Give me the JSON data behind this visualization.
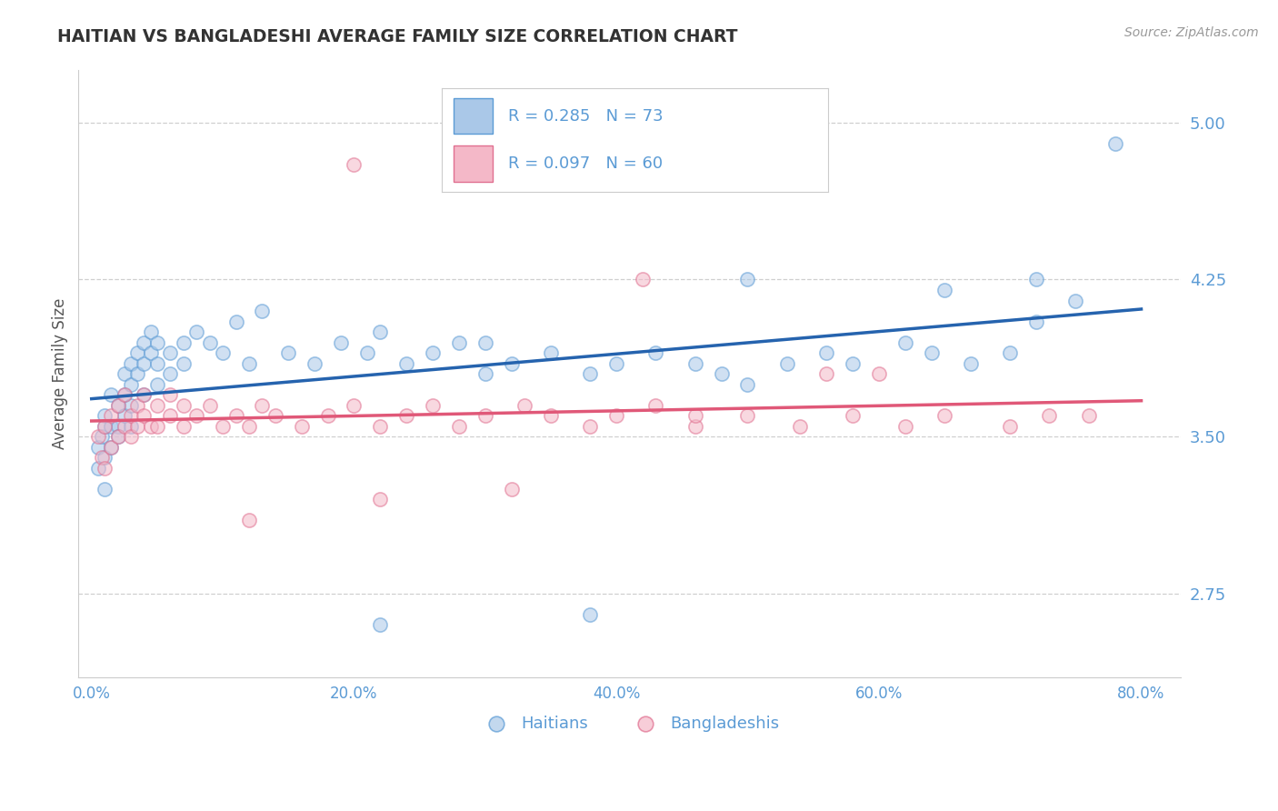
{
  "title": "HAITIAN VS BANGLADESHI AVERAGE FAMILY SIZE CORRELATION CHART",
  "source_text": "Source: ZipAtlas.com",
  "xlabel_ticks": [
    "0.0%",
    "20.0%",
    "40.0%",
    "60.0%",
    "80.0%"
  ],
  "xlabel_tick_vals": [
    0.0,
    0.2,
    0.4,
    0.6,
    0.8
  ],
  "ylabel": "Average Family Size",
  "yticks": [
    2.75,
    3.5,
    4.25,
    5.0
  ],
  "ylim": [
    2.35,
    5.25
  ],
  "xlim": [
    -0.01,
    0.83
  ],
  "title_color": "#444444",
  "axis_color": "#5b9bd5",
  "grid_color": "#bbbbbb",
  "blue_fill": "#aac8e8",
  "pink_fill": "#f4b8c8",
  "blue_edge": "#5b9bd5",
  "pink_edge": "#e07090",
  "blue_line_color": "#2563ae",
  "pink_line_color": "#e05878",
  "legend_text1": "R = 0.285   N = 73",
  "legend_text2": "R = 0.097   N = 60",
  "haitian_x": [
    0.005,
    0.005,
    0.008,
    0.01,
    0.01,
    0.01,
    0.01,
    0.015,
    0.015,
    0.015,
    0.02,
    0.02,
    0.02,
    0.025,
    0.025,
    0.025,
    0.03,
    0.03,
    0.03,
    0.03,
    0.035,
    0.035,
    0.04,
    0.04,
    0.04,
    0.045,
    0.045,
    0.05,
    0.05,
    0.05,
    0.06,
    0.06,
    0.07,
    0.07,
    0.08,
    0.09,
    0.1,
    0.11,
    0.12,
    0.13,
    0.15,
    0.17,
    0.19,
    0.21,
    0.22,
    0.24,
    0.26,
    0.28,
    0.3,
    0.32,
    0.35,
    0.38,
    0.4,
    0.43,
    0.46,
    0.48,
    0.5,
    0.53,
    0.56,
    0.58,
    0.62,
    0.64,
    0.67,
    0.7,
    0.72,
    0.75,
    0.78,
    0.38,
    0.22,
    0.3,
    0.5,
    0.65,
    0.72
  ],
  "haitian_y": [
    3.45,
    3.35,
    3.5,
    3.6,
    3.4,
    3.25,
    3.55,
    3.7,
    3.55,
    3.45,
    3.65,
    3.55,
    3.5,
    3.8,
    3.7,
    3.6,
    3.85,
    3.75,
    3.65,
    3.55,
    3.9,
    3.8,
    3.95,
    3.85,
    3.7,
    4.0,
    3.9,
    3.95,
    3.85,
    3.75,
    3.9,
    3.8,
    3.95,
    3.85,
    4.0,
    3.95,
    3.9,
    4.05,
    3.85,
    4.1,
    3.9,
    3.85,
    3.95,
    3.9,
    4.0,
    3.85,
    3.9,
    3.95,
    3.8,
    3.85,
    3.9,
    3.8,
    3.85,
    3.9,
    3.85,
    3.8,
    3.75,
    3.85,
    3.9,
    3.85,
    3.95,
    3.9,
    3.85,
    3.9,
    4.25,
    4.15,
    4.9,
    2.65,
    2.6,
    3.95,
    4.25,
    4.2,
    4.05
  ],
  "bangladeshi_x": [
    0.005,
    0.008,
    0.01,
    0.01,
    0.015,
    0.015,
    0.02,
    0.02,
    0.025,
    0.025,
    0.03,
    0.03,
    0.035,
    0.035,
    0.04,
    0.04,
    0.045,
    0.05,
    0.05,
    0.06,
    0.06,
    0.07,
    0.07,
    0.08,
    0.09,
    0.1,
    0.11,
    0.12,
    0.13,
    0.14,
    0.16,
    0.18,
    0.2,
    0.22,
    0.24,
    0.26,
    0.28,
    0.3,
    0.33,
    0.35,
    0.38,
    0.4,
    0.43,
    0.46,
    0.5,
    0.54,
    0.58,
    0.62,
    0.65,
    0.7,
    0.2,
    0.42,
    0.46,
    0.56,
    0.6,
    0.73,
    0.76,
    0.12,
    0.22,
    0.32
  ],
  "bangladeshi_y": [
    3.5,
    3.4,
    3.55,
    3.35,
    3.6,
    3.45,
    3.65,
    3.5,
    3.7,
    3.55,
    3.6,
    3.5,
    3.65,
    3.55,
    3.7,
    3.6,
    3.55,
    3.65,
    3.55,
    3.7,
    3.6,
    3.65,
    3.55,
    3.6,
    3.65,
    3.55,
    3.6,
    3.55,
    3.65,
    3.6,
    3.55,
    3.6,
    3.65,
    3.55,
    3.6,
    3.65,
    3.55,
    3.6,
    3.65,
    3.6,
    3.55,
    3.6,
    3.65,
    3.55,
    3.6,
    3.55,
    3.6,
    3.55,
    3.6,
    3.55,
    4.8,
    4.25,
    3.6,
    3.8,
    3.8,
    3.6,
    3.6,
    3.1,
    3.2,
    3.25
  ]
}
